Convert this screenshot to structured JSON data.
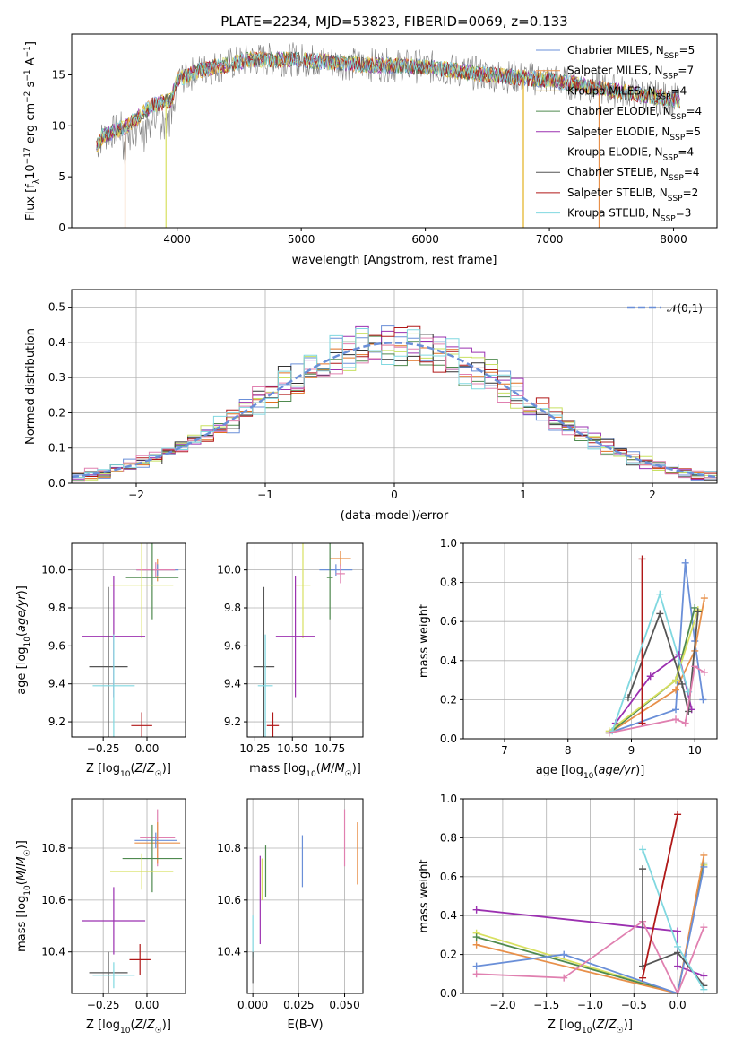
{
  "figure_title": "PLATE=2234, MJD=53823, FIBERID=0069, z=0.133",
  "colors": {
    "Chabrier MILES": "#6a8fd8",
    "Salpeter MILES": "#e8904a",
    "Kroupa MILES": "#e2b020",
    "Chabrier ELODIE": "#4f8a4f",
    "Salpeter ELODIE": "#9b30b0",
    "Kroupa ELODIE": "#d8e060",
    "Chabrier STELIB": "#555555",
    "Salpeter STELIB": "#b01818",
    "Kroupa STELIB": "#80d8e0",
    "dist_pink": "#e080b0",
    "dist_blue": "#6a8fd8",
    "dist_orange": "#e07020",
    "dist_green": "#4f8a4f",
    "dist_purple": "#9b30b0",
    "dist_lime": "#c8e060",
    "dist_black": "#333333",
    "dist_red": "#b01818",
    "dist_cyan": "#80d8e0",
    "grid": "#b0b0b0"
  },
  "chart_data": [
    {
      "id": "spectrum",
      "type": "line",
      "title": "PLATE=2234, MJD=53823, FIBERID=0069, z=0.133",
      "xlabel": "wavelength [Angstrom, rest frame]",
      "ylabel": "Flux [f_λ10^-17 erg cm^-2 s^-1 A^-1]",
      "xlim": [
        3150,
        8350
      ],
      "ylim": [
        0,
        19
      ],
      "xticks": [
        4000,
        5000,
        6000,
        7000,
        8000
      ],
      "yticks": [
        0,
        5,
        10,
        15
      ],
      "grid": false,
      "legend_position": "right",
      "legend": [
        {
          "key": "Chabrier MILES",
          "label": "Chabrier MILES, N_SSP=5"
        },
        {
          "key": "Salpeter MILES",
          "label": "Salpeter MILES, N_SSP=7"
        },
        {
          "key": "Kroupa MILES",
          "label": "Kroupa MILES, N_SSP=4"
        },
        {
          "key": "Chabrier ELODIE",
          "label": "Chabrier ELODIE, N_SSP=4"
        },
        {
          "key": "Salpeter ELODIE",
          "label": "Salpeter ELODIE, N_SSP=5"
        },
        {
          "key": "Kroupa ELODIE",
          "label": "Kroupa ELODIE, N_SSP=4"
        },
        {
          "key": "Chabrier STELIB",
          "label": "Chabrier STELIB, N_SSP=4"
        },
        {
          "key": "Salpeter STELIB",
          "label": "Salpeter STELIB, N_SSP=2"
        },
        {
          "key": "Kroupa STELIB",
          "label": "Kroupa STELIB, N_SSP=3"
        }
      ],
      "continuum": [
        [
          3350,
          8.0
        ],
        [
          3400,
          9.0
        ],
        [
          3600,
          10.0
        ],
        [
          3700,
          11.0
        ],
        [
          3800,
          12.0
        ],
        [
          3950,
          12.5
        ],
        [
          4000,
          14.5
        ],
        [
          4200,
          15.5
        ],
        [
          4600,
          16.5
        ],
        [
          5000,
          16.5
        ],
        [
          5500,
          16.0
        ],
        [
          6000,
          15.8
        ],
        [
          6500,
          15.0
        ],
        [
          7000,
          14.5
        ],
        [
          7500,
          13.5
        ],
        [
          8050,
          12.5
        ]
      ],
      "drops": [
        {
          "key": "Salpeter MILES",
          "x": 3580,
          "to": 0
        },
        {
          "key": "Kroupa ELODIE",
          "x": 3910,
          "to": 0
        },
        {
          "key": "Kroupa MILES",
          "x": 6790,
          "to": 0
        },
        {
          "key": "Salpeter MILES",
          "x": 7400,
          "to": 0
        }
      ]
    },
    {
      "id": "residuals",
      "type": "line",
      "xlabel": "(data-model)/error",
      "ylabel": "Normed distribution",
      "xlim": [
        -2.5,
        2.5
      ],
      "ylim": [
        0,
        0.55
      ],
      "xticks": [
        -2,
        -1,
        0,
        1,
        2
      ],
      "yticks": [
        0.0,
        0.1,
        0.2,
        0.3,
        0.4,
        0.5
      ],
      "grid": true,
      "legend_position": "top-right",
      "legend": [
        {
          "label": "𝒩(0,1)"
        }
      ],
      "bin_width": 0.1,
      "series_keys": [
        "dist_blue",
        "dist_orange",
        "dist_green",
        "dist_purple",
        "dist_lime",
        "dist_black",
        "dist_red",
        "dist_pink",
        "dist_cyan"
      ]
    },
    {
      "id": "z_age",
      "type": "scatter",
      "xlabel": "Z [log10(Z/Z☉)]",
      "ylabel": "age  [log10(age/yr)]",
      "xlim": [
        -0.43,
        0.22
      ],
      "ylim": [
        9.12,
        10.14
      ],
      "xticks": [
        -0.25,
        0.0
      ],
      "yticks": [
        9.2,
        9.4,
        9.6,
        9.8,
        10.0
      ],
      "grid": true,
      "points": [
        {
          "key": "Salpeter MILES",
          "x": 0.06,
          "y": 10.0,
          "xerr": 0.1,
          "yerr": 0.06
        },
        {
          "key": "Chabrier MILES",
          "x": 0.06,
          "y": 10.0,
          "xerr": 0.12,
          "yerr": 0.03
        },
        {
          "key": "dist_pink",
          "x": 0.05,
          "y": 10.0,
          "xerr": 0.11,
          "yerr": 0.04
        },
        {
          "key": "Chabrier ELODIE",
          "x": 0.03,
          "y": 9.96,
          "xerr": 0.15,
          "yerr": 0.22
        },
        {
          "key": "Kroupa ELODIE",
          "x": -0.03,
          "y": 9.92,
          "xerr": 0.18,
          "yerr": 0.28
        },
        {
          "key": "Salpeter ELODIE",
          "x": -0.19,
          "y": 9.65,
          "xerr": 0.18,
          "yerr": 0.32
        },
        {
          "key": "Chabrier STELIB",
          "x": -0.22,
          "y": 9.49,
          "xerr": 0.11,
          "yerr": 0.42
        },
        {
          "key": "Kroupa STELIB",
          "x": -0.19,
          "y": 9.39,
          "xerr": 0.12,
          "yerr": 0.27
        },
        {
          "key": "Salpeter STELIB",
          "x": -0.03,
          "y": 9.18,
          "xerr": 0.06,
          "yerr": 0.07
        }
      ]
    },
    {
      "id": "mass_age",
      "type": "scatter",
      "xlabel": "mass [log10(M/M☉)]",
      "ylabel": "",
      "xlim": [
        10.2,
        10.97
      ],
      "ylim": [
        9.12,
        10.14
      ],
      "xticks": [
        10.25,
        10.5,
        10.75
      ],
      "yticks": [
        9.2,
        9.4,
        9.6,
        9.8,
        10.0
      ],
      "grid": true,
      "points": [
        {
          "key": "Salpeter MILES",
          "x": 10.82,
          "y": 10.06,
          "xerr": 0.07,
          "yerr": 0.04
        },
        {
          "key": "Chabrier MILES",
          "x": 10.79,
          "y": 10.0,
          "xerr": 0.11,
          "yerr": 0.03
        },
        {
          "key": "dist_pink",
          "x": 10.82,
          "y": 9.98,
          "xerr": 0.03,
          "yerr": 0.05
        },
        {
          "key": "Chabrier ELODIE",
          "x": 10.75,
          "y": 9.96,
          "xerr": 0.02,
          "yerr": 0.22
        },
        {
          "key": "Kroupa ELODIE",
          "x": 10.57,
          "y": 9.92,
          "xerr": 0.05,
          "yerr": 0.28
        },
        {
          "key": "Salpeter ELODIE",
          "x": 10.52,
          "y": 9.65,
          "xerr": 0.13,
          "yerr": 0.32
        },
        {
          "key": "Chabrier STELIB",
          "x": 10.31,
          "y": 9.49,
          "xerr": 0.07,
          "yerr": 0.42
        },
        {
          "key": "Kroupa STELIB",
          "x": 10.32,
          "y": 9.39,
          "xerr": 0.05,
          "yerr": 0.27
        },
        {
          "key": "Salpeter STELIB",
          "x": 10.37,
          "y": 9.18,
          "xerr": 0.04,
          "yerr": 0.07
        }
      ]
    },
    {
      "id": "age_weight",
      "type": "line",
      "xlabel": "age  [log10(age/yr)]",
      "ylabel": "mass weight",
      "xlim": [
        6.35,
        10.35
      ],
      "ylim": [
        0,
        1.0
      ],
      "xticks": [
        7,
        8,
        9,
        10
      ],
      "yticks": [
        0.0,
        0.2,
        0.4,
        0.6,
        0.8,
        1.0
      ],
      "grid": true,
      "series": [
        {
          "key": "Chabrier MILES",
          "points": [
            [
              8.65,
              0.03
            ],
            [
              9.7,
              0.15
            ],
            [
              9.85,
              0.9
            ],
            [
              10.0,
              0.5
            ],
            [
              10.13,
              0.2
            ]
          ]
        },
        {
          "key": "Salpeter MILES",
          "points": [
            [
              8.65,
              0.03
            ],
            [
              9.7,
              0.25
            ],
            [
              10.0,
              0.45
            ],
            [
              10.15,
              0.72
            ]
          ]
        },
        {
          "key": "Chabrier ELODIE",
          "points": [
            [
              8.65,
              0.03
            ],
            [
              9.7,
              0.3
            ],
            [
              10.0,
              0.67
            ]
          ]
        },
        {
          "key": "Salpeter ELODIE",
          "points": [
            [
              8.75,
              0.08
            ],
            [
              9.3,
              0.32
            ],
            [
              9.75,
              0.43
            ],
            [
              9.95,
              0.15
            ]
          ]
        },
        {
          "key": "Kroupa ELODIE",
          "points": [
            [
              8.65,
              0.04
            ],
            [
              9.7,
              0.3
            ],
            [
              10.05,
              0.66
            ]
          ]
        },
        {
          "key": "Chabrier STELIB",
          "points": [
            [
              8.95,
              0.21
            ],
            [
              9.45,
              0.64
            ],
            [
              9.8,
              0.28
            ],
            [
              9.9,
              0.14
            ],
            [
              10.05,
              0.65
            ]
          ]
        },
        {
          "key": "Salpeter STELIB",
          "points": [
            [
              9.17,
              0.08
            ],
            [
              9.17,
              0.92
            ]
          ]
        },
        {
          "key": "Kroupa STELIB",
          "points": [
            [
              8.7,
              0.04
            ],
            [
              9.45,
              0.74
            ],
            [
              9.9,
              0.24
            ]
          ]
        },
        {
          "key": "dist_pink",
          "points": [
            [
              8.65,
              0.03
            ],
            [
              9.7,
              0.1
            ],
            [
              9.85,
              0.08
            ],
            [
              10.0,
              0.37
            ],
            [
              10.15,
              0.34
            ]
          ]
        }
      ]
    },
    {
      "id": "z_mass",
      "type": "scatter",
      "xlabel": "Z [log10(Z/Z☉)]",
      "ylabel": "mass [log10(M/M☉)]",
      "xlim": [
        -0.43,
        0.22
      ],
      "ylim": [
        10.24,
        10.99
      ],
      "xticks": [
        -0.25,
        0.0
      ],
      "yticks": [
        10.4,
        10.6,
        10.8
      ],
      "grid": true,
      "points": [
        {
          "key": "dist_pink",
          "x": 0.06,
          "y": 10.84,
          "xerr": 0.1,
          "yerr": 0.11
        },
        {
          "key": "Salpeter MILES",
          "x": 0.06,
          "y": 10.82,
          "xerr": 0.13,
          "yerr": 0.08
        },
        {
          "key": "Chabrier MILES",
          "x": 0.05,
          "y": 10.83,
          "xerr": 0.12,
          "yerr": 0.03
        },
        {
          "key": "Chabrier ELODIE",
          "x": 0.03,
          "y": 10.76,
          "xerr": 0.17,
          "yerr": 0.13
        },
        {
          "key": "Kroupa ELODIE",
          "x": -0.03,
          "y": 10.71,
          "xerr": 0.18,
          "yerr": 0.07
        },
        {
          "key": "Salpeter ELODIE",
          "x": -0.19,
          "y": 10.52,
          "xerr": 0.18,
          "yerr": 0.13
        },
        {
          "key": "Chabrier STELIB",
          "x": -0.22,
          "y": 10.32,
          "xerr": 0.11,
          "yerr": 0.08
        },
        {
          "key": "Kroupa STELIB",
          "x": -0.19,
          "y": 10.31,
          "xerr": 0.12,
          "yerr": 0.05
        },
        {
          "key": "Salpeter STELIB",
          "x": -0.04,
          "y": 10.37,
          "xerr": 0.06,
          "yerr": 0.06
        }
      ]
    },
    {
      "id": "ebv_mass",
      "type": "scatter",
      "xlabel": "E(B-V)",
      "ylabel": "",
      "xlim": [
        -0.003,
        0.06
      ],
      "ylim": [
        10.24,
        10.99
      ],
      "xticks": [
        0.0,
        0.025,
        0.05
      ],
      "yticks": [
        10.4,
        10.6,
        10.8
      ],
      "grid": true,
      "points": [
        {
          "key": "dist_pink",
          "x": 0.05,
          "y": 10.84,
          "yerr": 0.11
        },
        {
          "key": "Salpeter MILES",
          "x": 0.057,
          "y": 10.78,
          "yerr": 0.12
        },
        {
          "key": "Chabrier MILES",
          "x": 0.027,
          "y": 10.75,
          "yerr": 0.1
        },
        {
          "key": "Chabrier ELODIE",
          "x": 0.007,
          "y": 10.71,
          "yerr": 0.1
        },
        {
          "key": "Kroupa ELODIE",
          "x": 0.005,
          "y": 10.68,
          "yerr": 0.08
        },
        {
          "key": "Salpeter ELODIE",
          "x": 0.004,
          "y": 10.6,
          "yerr": 0.17
        },
        {
          "key": "Kroupa STELIB",
          "x": 0.0,
          "y": 10.46,
          "yerr": 0.08
        },
        {
          "key": "Chabrier STELIB",
          "x": 0.0,
          "y": 10.34,
          "yerr": 0.06
        }
      ]
    },
    {
      "id": "z_weight",
      "type": "line",
      "xlabel": "Z [log10(Z/Z☉)]",
      "ylabel": "mass weight",
      "xlim": [
        -2.45,
        0.45
      ],
      "ylim": [
        0,
        1.0
      ],
      "xticks": [
        -2.0,
        -1.5,
        -1.0,
        -0.5,
        0.0
      ],
      "yticks": [
        0.0,
        0.2,
        0.4,
        0.6,
        0.8,
        1.0
      ],
      "grid": true,
      "series": [
        {
          "key": "Salpeter ELODIE",
          "points": [
            [
              -2.3,
              0.43
            ],
            [
              0.0,
              0.32
            ],
            [
              0.0,
              0.14
            ],
            [
              0.3,
              0.09
            ]
          ]
        },
        {
          "key": "Kroupa ELODIE",
          "points": [
            [
              -2.3,
              0.31
            ],
            [
              0.0,
              0.0
            ],
            [
              0.3,
              0.66
            ]
          ]
        },
        {
          "key": "Chabrier ELODIE",
          "points": [
            [
              -2.3,
              0.29
            ],
            [
              0.0,
              0.0
            ],
            [
              0.3,
              0.67
            ]
          ]
        },
        {
          "key": "Salpeter MILES",
          "points": [
            [
              -2.3,
              0.25
            ],
            [
              0.0,
              0.0
            ],
            [
              0.3,
              0.71
            ]
          ]
        },
        {
          "key": "Chabrier MILES",
          "points": [
            [
              -2.3,
              0.14
            ],
            [
              -1.3,
              0.2
            ],
            [
              0.0,
              0.0
            ],
            [
              0.3,
              0.65
            ]
          ]
        },
        {
          "key": "dist_pink",
          "points": [
            [
              -2.3,
              0.1
            ],
            [
              -1.3,
              0.08
            ],
            [
              -0.4,
              0.37
            ],
            [
              0.0,
              0.0
            ],
            [
              0.3,
              0.34
            ]
          ]
        },
        {
          "key": "Chabrier STELIB",
          "points": [
            [
              -0.4,
              0.64
            ],
            [
              -0.4,
              0.14
            ],
            [
              0.0,
              0.21
            ],
            [
              0.3,
              0.04
            ]
          ]
        },
        {
          "key": "Kroupa STELIB",
          "points": [
            [
              -0.4,
              0.74
            ],
            [
              0.0,
              0.24
            ],
            [
              0.3,
              0.02
            ]
          ]
        },
        {
          "key": "Salpeter STELIB",
          "points": [
            [
              -0.4,
              0.08
            ],
            [
              0.0,
              0.92
            ]
          ]
        }
      ]
    }
  ]
}
